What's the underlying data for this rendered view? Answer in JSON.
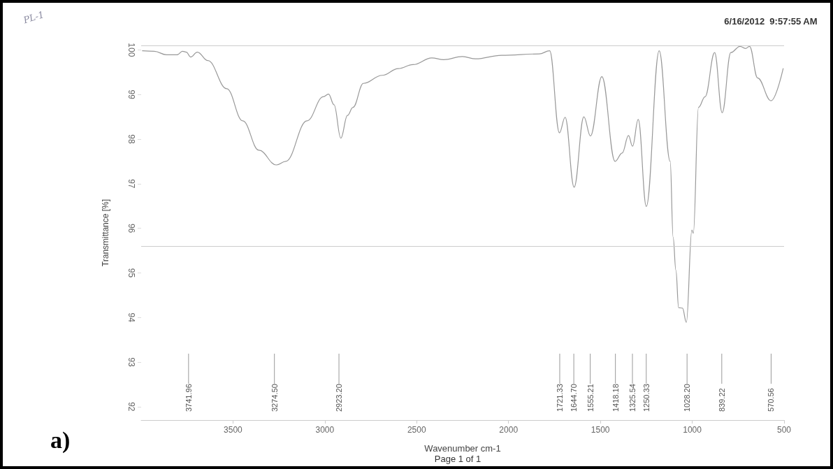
{
  "chart_data": {
    "type": "line",
    "xlabel": "Wavenumber cm-1",
    "ylabel": "Transmittance [%]",
    "x": [
      3993,
      3929,
      3862,
      3804,
      3775,
      3754,
      3731,
      3694,
      3637,
      3534,
      3447,
      3359,
      3264,
      3213,
      3097,
      3008,
      2980,
      2950,
      2913,
      2877,
      2847,
      2790,
      2688,
      2600,
      2520,
      2418,
      2353,
      2251,
      2179,
      2038,
      1833,
      1776,
      1723,
      1692,
      1643,
      1590,
      1554,
      1492,
      1420,
      1381,
      1347,
      1325,
      1294,
      1250,
      1180,
      1120,
      1104,
      1089,
      1074,
      1053,
      1032,
      1002,
      994,
      966,
      930,
      878,
      837,
      790,
      740,
      710,
      688,
      644,
      571,
      505
    ],
    "series": [
      {
        "color": "#999999",
        "values": [
          99.98,
          99.97,
          99.89,
          99.89,
          99.97,
          99.95,
          99.84,
          99.95,
          99.76,
          99.13,
          98.41,
          97.75,
          97.42,
          97.5,
          98.41,
          98.95,
          99.01,
          98.77,
          98.02,
          98.53,
          98.71,
          99.25,
          99.43,
          99.58,
          99.67,
          99.82,
          99.78,
          99.85,
          99.8,
          99.88,
          99.91,
          99.98,
          98.14,
          98.49,
          96.92,
          98.5,
          98.07,
          99.4,
          97.5,
          97.69,
          98.08,
          97.84,
          98.44,
          96.49,
          99.98,
          97.5,
          95.8,
          95.06,
          94.22,
          94.21,
          93.89,
          95.96,
          95.89,
          98.71,
          98.95,
          99.94,
          98.59,
          99.94,
          100.08,
          100.03,
          100.08,
          99.37,
          98.86,
          99.58
        ]
      }
    ],
    "xlim": [
      4000,
      500
    ],
    "xticks": [
      3500,
      3000,
      2500,
      2000,
      1500,
      1000,
      500
    ],
    "ylim": [
      91.7,
      100.1
    ],
    "yticks": [
      92,
      93,
      94,
      95,
      96,
      97,
      98,
      99,
      100
    ],
    "grid": false,
    "marker": "none",
    "line_style": "solid",
    "ref_lines": [
      {
        "axis": "y",
        "value": 95.6,
        "color": "#cccccc"
      },
      {
        "axis": "y",
        "value": 100.1,
        "color": "#cccccc"
      }
    ],
    "annotations": [
      "PL-1",
      "6/16/2012  9:57:55 AM",
      "a)",
      "Page 1 of 1",
      {
        "text": "3741.96",
        "x": 3741.96
      },
      {
        "text": "3274.50",
        "x": 3274.5
      },
      {
        "text": "2923.20",
        "x": 2923.2
      },
      {
        "text": "1721.33",
        "x": 1721.33
      },
      {
        "text": "1644.70",
        "x": 1644.7
      },
      {
        "text": "1555.21",
        "x": 1555.21
      },
      {
        "text": "1418.18",
        "x": 1418.18
      },
      {
        "text": "1325.54",
        "x": 1325.54
      },
      {
        "text": "1250.33",
        "x": 1250.33
      },
      {
        "text": "1028.20",
        "x": 1028.2
      },
      {
        "text": "839.22",
        "x": 839.22
      },
      {
        "text": "570.56",
        "x": 570.56
      }
    ]
  }
}
